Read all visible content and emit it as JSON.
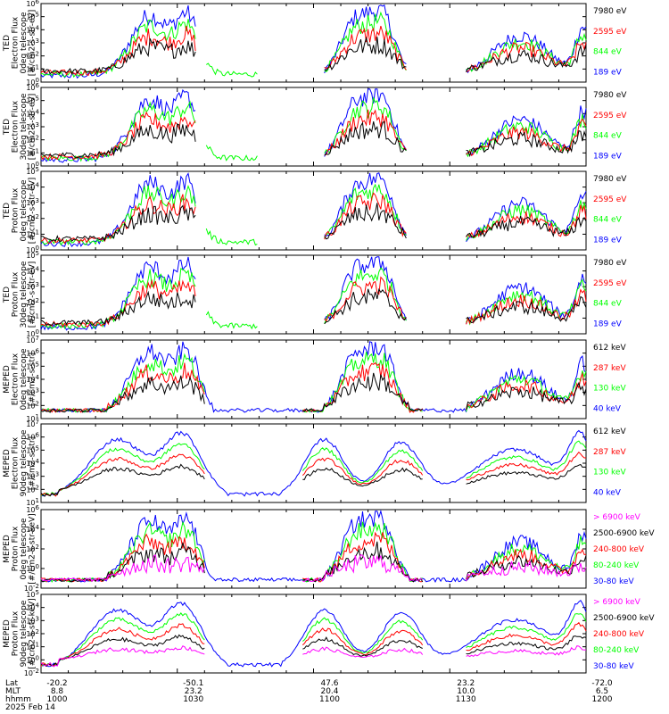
{
  "date_label": "2025 Feb 14",
  "colors": {
    "blue": "#0000ff",
    "red": "#ff0000",
    "green": "#00ff00",
    "black": "#000000",
    "magenta": "#ff00ff"
  },
  "x_axis": {
    "row_labels": [
      "Lat",
      "MLT",
      "hhmm"
    ],
    "ticks": [
      {
        "lat": "-20.2",
        "mlt": "8.8",
        "hhmm": "1000"
      },
      {
        "lat": "-50.1",
        "mlt": "23.2",
        "hhmm": "1030"
      },
      {
        "lat": "47.6",
        "mlt": "20.4",
        "hhmm": "1100"
      },
      {
        "lat": "23.2",
        "mlt": "10.0",
        "hhmm": "1130"
      },
      {
        "lat": "-72.0",
        "mlt": "6.5",
        "hhmm": "1200"
      }
    ]
  },
  "chart_data": [
    {
      "type": "line",
      "title_lines": [
        "TED",
        "Electron Flux",
        "0deg telescope",
        "[#/cm2-s-str-eV]"
      ],
      "y_ticks": [
        "10^0",
        "10^1",
        "10^2",
        "10^3",
        "10^4",
        "10^5",
        "10^6"
      ],
      "series": [
        {
          "name": "7980 eV",
          "color": "#000000"
        },
        {
          "name": "2595 eV",
          "color": "#ff0000"
        },
        {
          "name": "844 eV",
          "color": "#00ff00"
        },
        {
          "name": "189 eV",
          "color": "#0000ff"
        }
      ]
    },
    {
      "type": "line",
      "title_lines": [
        "TED",
        "Electron Flux",
        "30deg telescope",
        "[#/cm2-s-str-eV]"
      ],
      "y_ticks": [
        "10^0",
        "10^1",
        "10^2",
        "10^3",
        "10^4",
        "10^5",
        "10^6"
      ],
      "series": [
        {
          "name": "7980 eV",
          "color": "#000000"
        },
        {
          "name": "2595 eV",
          "color": "#ff0000"
        },
        {
          "name": "844 eV",
          "color": "#00ff00"
        },
        {
          "name": "189 eV",
          "color": "#0000ff"
        }
      ]
    },
    {
      "type": "line",
      "title_lines": [
        "TED",
        "Proton Flux",
        "0deg telescope",
        "[#/cm2-s-str-eV]"
      ],
      "y_ticks": [
        "10^0",
        "10^1",
        "10^2",
        "10^3",
        "10^4",
        "10^5"
      ],
      "series": [
        {
          "name": "7980 eV",
          "color": "#000000"
        },
        {
          "name": "2595 eV",
          "color": "#ff0000"
        },
        {
          "name": "844 eV",
          "color": "#00ff00"
        },
        {
          "name": "189 eV",
          "color": "#0000ff"
        }
      ]
    },
    {
      "type": "line",
      "title_lines": [
        "TED",
        "Proton Flux",
        "30deg telescope",
        "[#/cm2-s-str-eV]"
      ],
      "y_ticks": [
        "10^0",
        "10^1",
        "10^2",
        "10^3",
        "10^4",
        "10^5"
      ],
      "series": [
        {
          "name": "7980 eV",
          "color": "#000000"
        },
        {
          "name": "2595 eV",
          "color": "#ff0000"
        },
        {
          "name": "844 eV",
          "color": "#00ff00"
        },
        {
          "name": "189 eV",
          "color": "#0000ff"
        }
      ]
    },
    {
      "type": "line",
      "title_lines": [
        "MEPED",
        "Electron Flux",
        "0deg telescope",
        "[#/cm2-s-str]"
      ],
      "y_ticks": [
        "10^1",
        "10^2",
        "10^3",
        "10^4",
        "10^5",
        "10^6",
        "10^7"
      ],
      "series": [
        {
          "name": "612 keV",
          "color": "#000000"
        },
        {
          "name": "287 keV",
          "color": "#ff0000"
        },
        {
          "name": "130 keV",
          "color": "#00ff00"
        },
        {
          "name": "40 keV",
          "color": "#0000ff"
        }
      ]
    },
    {
      "type": "line",
      "title_lines": [
        "MEPED",
        "Electron Flux",
        "90deg telescope",
        "[#/cm2-s-str]"
      ],
      "y_ticks": [
        "10^1",
        "10^2",
        "10^3",
        "10^4",
        "10^5",
        "10^6",
        "10^7"
      ],
      "series": [
        {
          "name": "612 keV",
          "color": "#000000"
        },
        {
          "name": "287 keV",
          "color": "#ff0000"
        },
        {
          "name": "130 keV",
          "color": "#00ff00"
        },
        {
          "name": "40 keV",
          "color": "#0000ff"
        }
      ]
    },
    {
      "type": "line",
      "title_lines": [
        "MEPED",
        "Proton Flux",
        "0deg telescope",
        "[#/cm2-s-str-keV]"
      ],
      "y_ticks": [
        "10^-2",
        "10^0",
        "10^2",
        "10^4",
        "10^6"
      ],
      "series": [
        {
          "name": "> 6900 keV",
          "color": "#ff00ff"
        },
        {
          "name": "2500-6900 keV",
          "color": "#000000"
        },
        {
          "name": "240-800 keV",
          "color": "#ff0000"
        },
        {
          "name": "80-240 keV",
          "color": "#00ff00"
        },
        {
          "name": "30-80 keV",
          "color": "#0000ff"
        }
      ]
    },
    {
      "type": "line",
      "title_lines": [
        "MEPED",
        "Proton Flux",
        "90deg telescope",
        "[#/cm2-s-str-keV]"
      ],
      "y_ticks": [
        "10^-2",
        "10^0",
        "10^1",
        "10^2",
        "10^3",
        "10^4",
        "10^5"
      ],
      "series": [
        {
          "name": "> 6900 keV",
          "color": "#ff00ff"
        },
        {
          "name": "2500-6900 keV",
          "color": "#000000"
        },
        {
          "name": "240-800 keV",
          "color": "#ff0000"
        },
        {
          "name": "80-240 keV",
          "color": "#00ff00"
        },
        {
          "name": "30-80 keV",
          "color": "#0000ff"
        }
      ]
    }
  ]
}
